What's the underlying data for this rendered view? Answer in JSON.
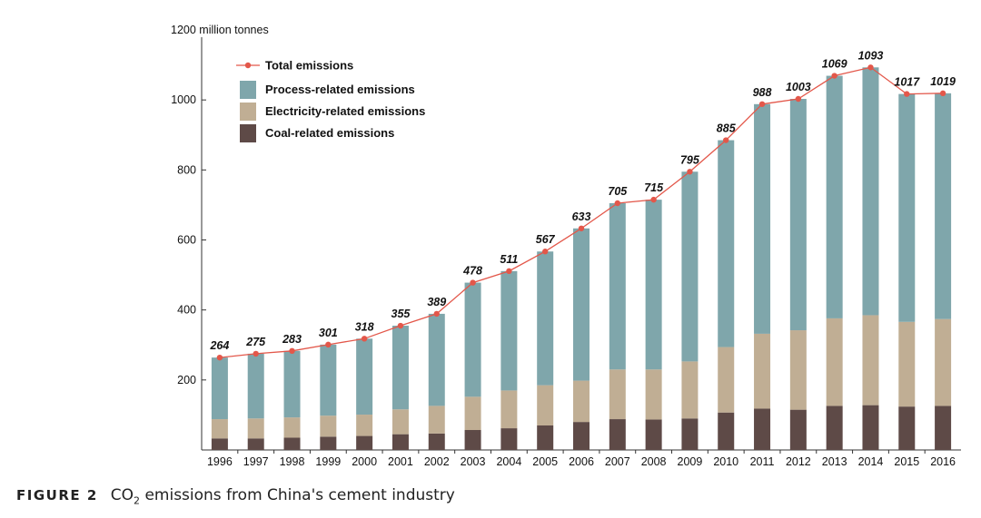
{
  "chart_data": {
    "type": "bar",
    "stacked": true,
    "ylabel": "1200 million tonnes",
    "ylim": [
      0,
      1200
    ],
    "yticks": [
      200,
      400,
      600,
      800,
      1000
    ],
    "categories": [
      "1996",
      "1997",
      "1998",
      "1999",
      "2000",
      "2001",
      "2002",
      "2003",
      "2004",
      "2005",
      "2006",
      "2007",
      "2008",
      "2009",
      "2010",
      "2011",
      "2012",
      "2013",
      "2014",
      "2015",
      "2016"
    ],
    "series": [
      {
        "name": "Coal-related emissions",
        "color": "#5e4a47",
        "values": [
          33,
          33,
          35,
          38,
          40,
          45,
          47,
          57,
          62,
          70,
          80,
          88,
          87,
          90,
          107,
          118,
          115,
          126,
          128,
          124,
          126
        ]
      },
      {
        "name": "Electricity-related emissions",
        "color": "#c0ae94",
        "values": [
          55,
          57,
          58,
          60,
          61,
          71,
          79,
          95,
          108,
          115,
          118,
          142,
          143,
          163,
          187,
          214,
          227,
          250,
          257,
          242,
          248
        ]
      },
      {
        "name": "Process-related emissions",
        "color": "#7fa6ab",
        "values": [
          176,
          185,
          190,
          203,
          217,
          239,
          263,
          326,
          341,
          382,
          435,
          475,
          485,
          542,
          591,
          656,
          661,
          693,
          708,
          651,
          645
        ]
      }
    ],
    "total": {
      "name": "Total emissions",
      "color": "#e3574a",
      "values": [
        264,
        275,
        283,
        301,
        318,
        355,
        389,
        478,
        511,
        567,
        633,
        705,
        715,
        795,
        885,
        988,
        1003,
        1069,
        1093,
        1017,
        1019
      ]
    },
    "legend": [
      "Total emissions",
      "Process-related emissions",
      "Electricity-related emissions",
      "Coal-related emissions"
    ]
  },
  "caption": {
    "figure": "FIGURE 2",
    "pre": "CO",
    "sub": "2",
    "post": " emissions from China's cement industry"
  }
}
